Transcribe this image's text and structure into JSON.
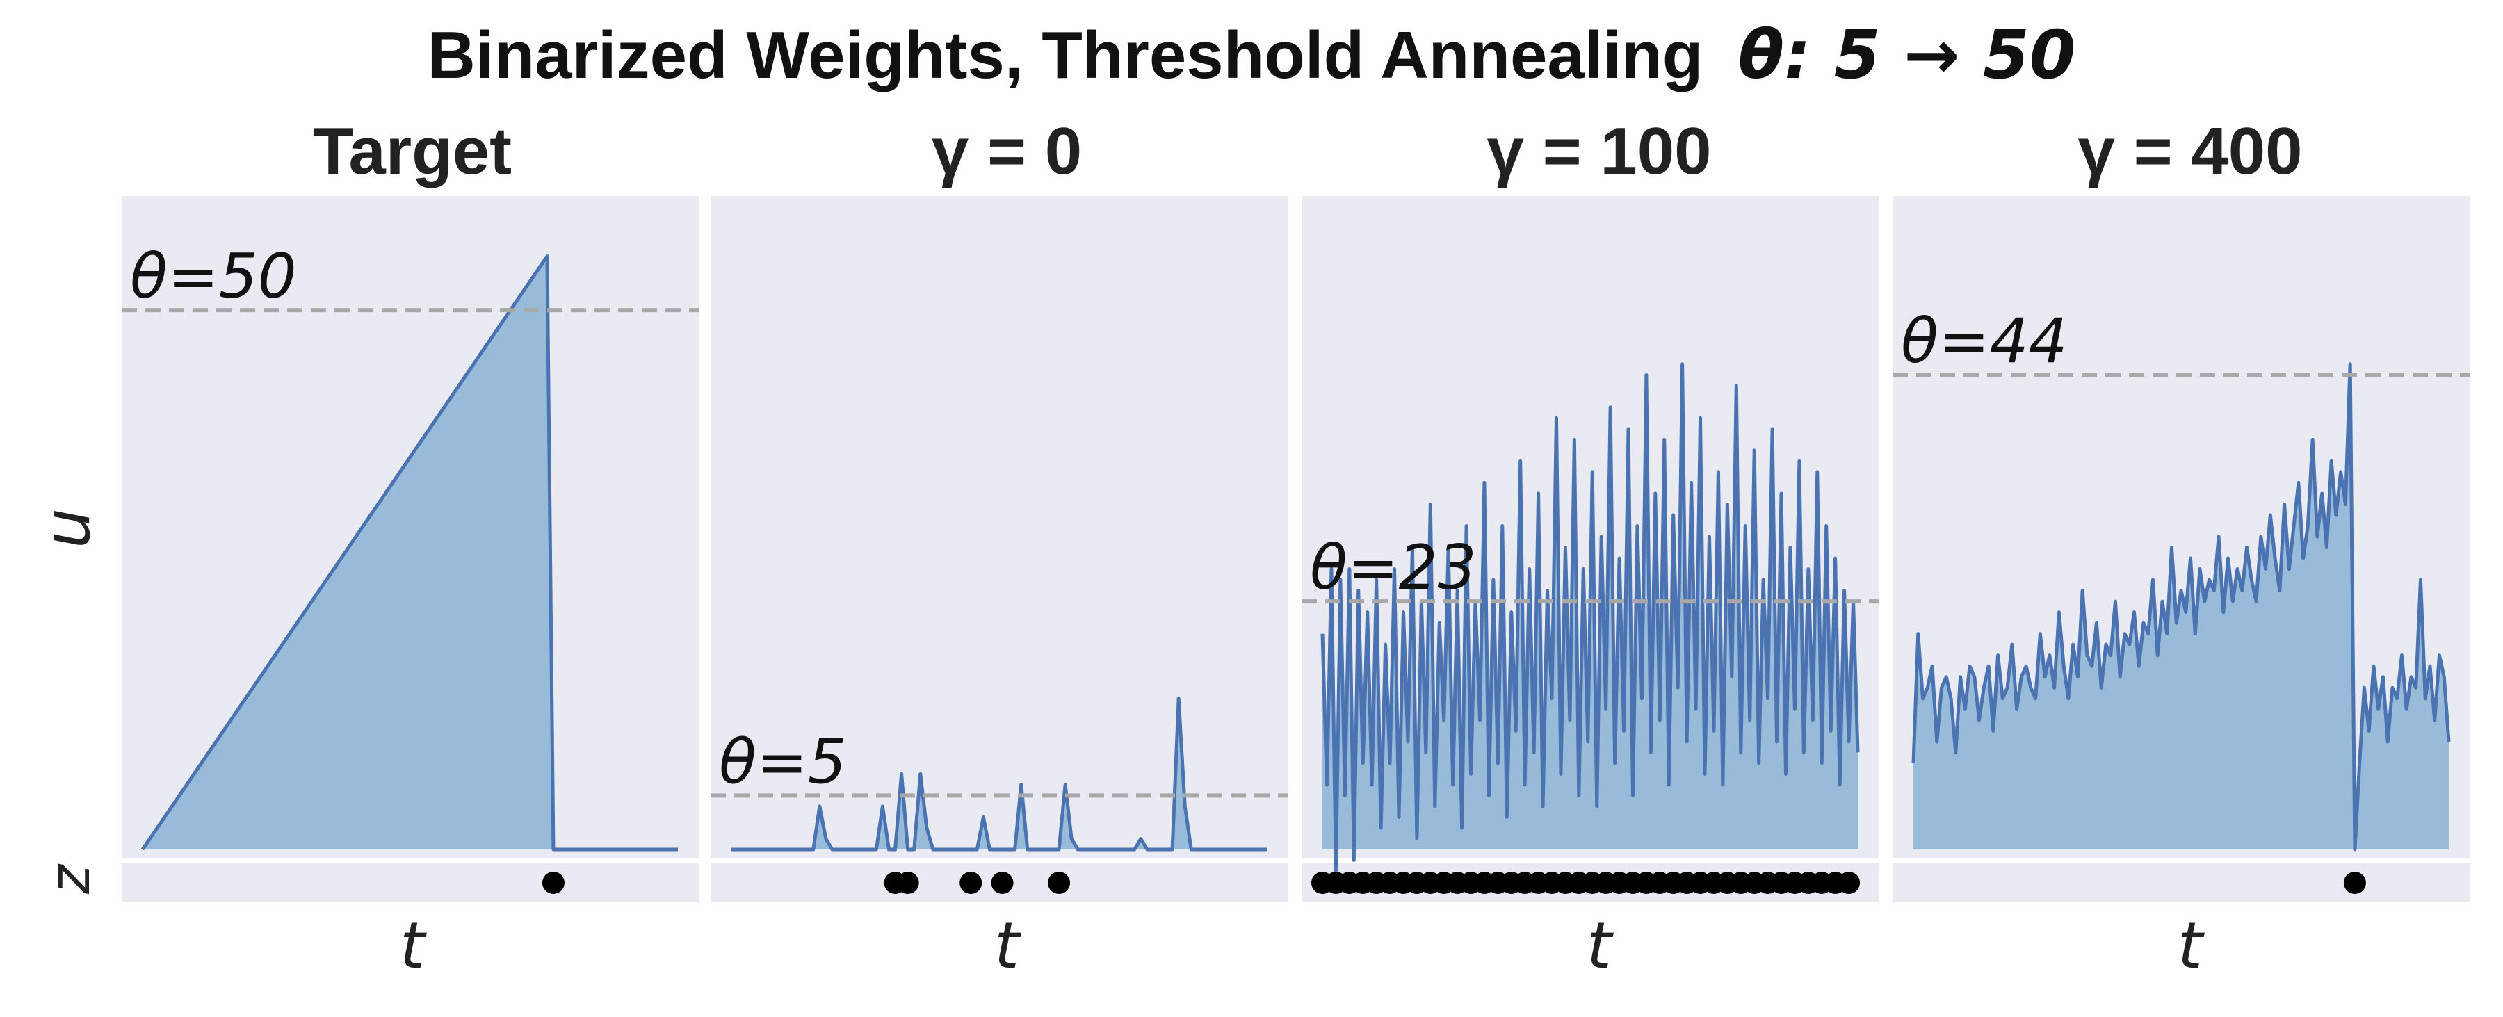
{
  "chart_data": {
    "type": "area",
    "title": "Binarized Weights, Threshold Annealing",
    "title_math": "θ: 5 → 50",
    "colors": {
      "background": "#eaeaf2",
      "fill": "#98bbd9",
      "line": "#4b73b1",
      "threshold": "#a8a8a8",
      "spike": "#000000"
    },
    "grid": false,
    "panels": [
      {
        "title": "Target",
        "ylabel": "u",
        "zlabel": "z",
        "xlabel": "t",
        "threshold": 50,
        "threshold_label": "θ=50",
        "ylim": [
          0,
          58
        ],
        "x": [
          0,
          65,
          66,
          86
        ],
        "u": [
          0,
          55,
          0,
          0
        ],
        "spikes": [
          66
        ]
      },
      {
        "title": "γ = 0",
        "xlabel": "t",
        "threshold": 5,
        "threshold_label": "θ=5",
        "ylim": [
          0,
          58
        ],
        "u": [
          0,
          0,
          0,
          0,
          0,
          0,
          0,
          0,
          0,
          0,
          0,
          0,
          0,
          0,
          4,
          1,
          0,
          0,
          0,
          0,
          0,
          0,
          0,
          0,
          4,
          0,
          0,
          7,
          0,
          0,
          7,
          2,
          0,
          0,
          0,
          0,
          0,
          0,
          0,
          0,
          3,
          0,
          0,
          0,
          0,
          0,
          6,
          0,
          0,
          0,
          0,
          0,
          0,
          6,
          1,
          0,
          0,
          0,
          0,
          0,
          0,
          0,
          0,
          0,
          0,
          1,
          0,
          0,
          0,
          0,
          0,
          14,
          4,
          0,
          0,
          0,
          0,
          0,
          0,
          0,
          0,
          0,
          0,
          0,
          0,
          0
        ],
        "spikes": [
          26,
          28,
          38,
          43,
          52
        ]
      },
      {
        "title": "γ = 100",
        "xlabel": "t",
        "threshold": 23,
        "threshold_label": "θ=23",
        "ylim": [
          0,
          58
        ],
        "u": [
          20,
          6,
          26,
          -2,
          25,
          5,
          26,
          -1,
          24,
          8,
          22,
          6,
          25,
          2,
          19,
          8,
          26,
          3,
          22,
          10,
          28,
          1,
          23,
          9,
          32,
          4,
          21,
          12,
          28,
          6,
          24,
          2,
          30,
          7,
          23,
          12,
          34,
          5,
          25,
          8,
          30,
          3,
          22,
          11,
          36,
          6,
          26,
          9,
          33,
          4,
          24,
          14,
          40,
          7,
          28,
          12,
          38,
          5,
          26,
          10,
          35,
          4,
          29,
          13,
          41,
          8,
          27,
          11,
          39,
          5,
          30,
          14,
          44,
          9,
          33,
          12,
          38,
          6,
          31,
          15,
          45,
          10,
          34,
          13,
          40,
          7,
          29,
          11,
          35,
          6,
          32,
          16,
          43,
          9,
          30,
          12,
          37,
          8,
          25,
          14,
          39,
          10,
          33,
          7,
          28,
          13,
          36,
          9,
          26,
          12,
          35,
          8,
          30,
          11,
          27,
          6,
          24,
          10,
          23,
          9
        ],
        "spikes": [
          0,
          3,
          6,
          9,
          12,
          15,
          18,
          21,
          24,
          27,
          30,
          33,
          36,
          39,
          42,
          45,
          48,
          51,
          54,
          57,
          60,
          63,
          66,
          69,
          72,
          75,
          78,
          81,
          84,
          87,
          90,
          93,
          96,
          99,
          102,
          105,
          108,
          111,
          114,
          117
        ]
      },
      {
        "title": "γ = 400",
        "xlabel": "t",
        "threshold": 44,
        "threshold_label": "θ=44",
        "ylim": [
          0,
          58
        ],
        "u": [
          8,
          20,
          14,
          15,
          17,
          10,
          15,
          16,
          14,
          9,
          16,
          13,
          17,
          16,
          12,
          15,
          17,
          11,
          18,
          14,
          15,
          19,
          13,
          16,
          17,
          15,
          14,
          20,
          16,
          18,
          15,
          22,
          17,
          14,
          19,
          16,
          24,
          18,
          17,
          21,
          15,
          19,
          18,
          23,
          16,
          20,
          19,
          22,
          17,
          21,
          20,
          25,
          18,
          23,
          20,
          28,
          21,
          24,
          22,
          27,
          20,
          26,
          23,
          25,
          24,
          29,
          22,
          27,
          23,
          26,
          24,
          28,
          25,
          23,
          29,
          26,
          31,
          27,
          24,
          32,
          26,
          30,
          34,
          27,
          30,
          38,
          29,
          33,
          28,
          36,
          31,
          35,
          32,
          45,
          0,
          8,
          15,
          11,
          17,
          13,
          16,
          10,
          15,
          14,
          18,
          13,
          16,
          15,
          25,
          14,
          17,
          12,
          18,
          16,
          10
        ],
        "spikes": [
          94
        ]
      }
    ]
  }
}
